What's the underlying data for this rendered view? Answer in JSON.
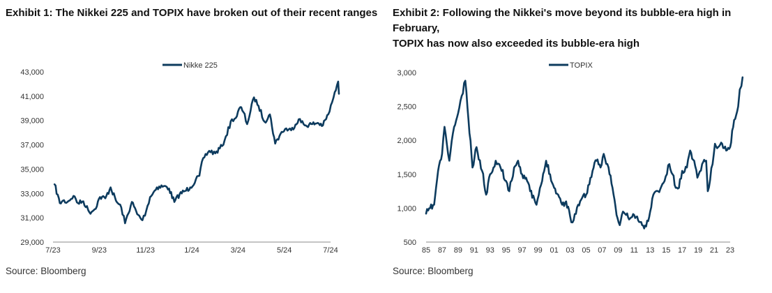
{
  "exhibit1": {
    "title": "Exhibit 1: The Nikkei 225 and TOPIX have broken out of their recent ranges",
    "source": "Source: Bloomberg"
  },
  "exhibit2": {
    "title_line1": "Exhibit 2: Following the Nikkei's move beyond its bubble-era high in February,",
    "title_line2": "TOPIX has now also exceeded its bubble-era high",
    "source": "Source: Bloomberg"
  },
  "chart_data": [
    {
      "type": "line",
      "title": "Exhibit 1: The Nikkei 225 and TOPIX have broken out of their recent ranges",
      "xlabel": "",
      "ylabel": "",
      "x_tick_labels": [
        "7/23",
        "9/23",
        "11/23",
        "1/24",
        "3/24",
        "5/24",
        "7/24"
      ],
      "y_tick_labels": [
        "29,000",
        "31,000",
        "33,000",
        "35,000",
        "37,000",
        "39,000",
        "41,000",
        "43,000"
      ],
      "ylim": [
        29000,
        43000
      ],
      "grid": false,
      "legend": "top-center",
      "color": "#0d3b5e",
      "series": [
        {
          "name": "Nikke 225",
          "points": [
            [
              "2023-07-03",
              33750
            ],
            [
              "2023-07-10",
              32200
            ],
            [
              "2023-07-14",
              32400
            ],
            [
              "2023-07-20",
              32300
            ],
            [
              "2023-07-28",
              32800
            ],
            [
              "2023-08-03",
              32200
            ],
            [
              "2023-08-10",
              32350
            ],
            [
              "2023-08-18",
              31450
            ],
            [
              "2023-08-25",
              31700
            ],
            [
              "2023-09-01",
              32700
            ],
            [
              "2023-09-08",
              32600
            ],
            [
              "2023-09-15",
              33500
            ],
            [
              "2023-09-22",
              32400
            ],
            [
              "2023-09-29",
              31850
            ],
            [
              "2023-10-04",
              30550
            ],
            [
              "2023-10-13",
              32300
            ],
            [
              "2023-10-20",
              31300
            ],
            [
              "2023-10-27",
              30800
            ],
            [
              "2023-11-01",
              31600
            ],
            [
              "2023-11-06",
              32700
            ],
            [
              "2023-11-15",
              33500
            ],
            [
              "2023-11-24",
              33600
            ],
            [
              "2023-12-01",
              33400
            ],
            [
              "2023-12-08",
              32300
            ],
            [
              "2023-12-15",
              32950
            ],
            [
              "2023-12-22",
              33200
            ],
            [
              "2023-12-29",
              33500
            ],
            [
              "2024-01-10",
              34450
            ],
            [
              "2024-01-15",
              35900
            ],
            [
              "2024-01-23",
              36500
            ],
            [
              "2024-01-31",
              36300
            ],
            [
              "2024-02-09",
              36900
            ],
            [
              "2024-02-14",
              37700
            ],
            [
              "2024-02-22",
              39100
            ],
            [
              "2024-02-27",
              39200
            ],
            [
              "2024-03-04",
              40100
            ],
            [
              "2024-03-08",
              39700
            ],
            [
              "2024-03-13",
              38700
            ],
            [
              "2024-03-22",
              40900
            ],
            [
              "2024-03-28",
              40200
            ],
            [
              "2024-04-05",
              38900
            ],
            [
              "2024-04-12",
              39500
            ],
            [
              "2024-04-19",
              37100
            ],
            [
              "2024-04-26",
              37900
            ],
            [
              "2024-05-02",
              38300
            ],
            [
              "2024-05-10",
              38200
            ],
            [
              "2024-05-20",
              39100
            ],
            [
              "2024-05-28",
              38600
            ],
            [
              "2024-06-07",
              38700
            ],
            [
              "2024-06-14",
              38800
            ],
            [
              "2024-06-21",
              38600
            ],
            [
              "2024-06-28",
              39500
            ],
            [
              "2024-07-03",
              40500
            ],
            [
              "2024-07-05",
              40900
            ],
            [
              "2024-07-11",
              42200
            ],
            [
              "2024-07-12",
              41200
            ]
          ]
        }
      ]
    },
    {
      "type": "line",
      "title": "Exhibit 2: Following the Nikkei's move beyond its bubble-era high in February, TOPIX has now also exceeded its bubble-era high",
      "xlabel": "",
      "ylabel": "",
      "x_tick_labels": [
        "85",
        "87",
        "89",
        "91",
        "93",
        "95",
        "97",
        "99",
        "01",
        "03",
        "05",
        "07",
        "09",
        "11",
        "13",
        "15",
        "17",
        "19",
        "21",
        "23"
      ],
      "y_tick_labels": [
        "500",
        "1,000",
        "1,500",
        "2,000",
        "2,500",
        "3,000"
      ],
      "ylim": [
        500,
        3000
      ],
      "grid": false,
      "legend": "top-center",
      "color": "#0d3b5e",
      "series": [
        {
          "name": "TOPIX",
          "points": [
            [
              1985.0,
              920
            ],
            [
              1985.5,
              1000
            ],
            [
              1986.0,
              1050
            ],
            [
              1986.5,
              1550
            ],
            [
              1987.0,
              1800
            ],
            [
              1987.3,
              2200
            ],
            [
              1987.9,
              1700
            ],
            [
              1988.5,
              2200
            ],
            [
              1989.0,
              2400
            ],
            [
              1989.9,
              2880
            ],
            [
              1990.3,
              2300
            ],
            [
              1990.8,
              1600
            ],
            [
              1991.3,
              1900
            ],
            [
              1992.0,
              1550
            ],
            [
              1992.5,
              1200
            ],
            [
              1993.0,
              1500
            ],
            [
              1993.7,
              1700
            ],
            [
              1994.3,
              1600
            ],
            [
              1995.0,
              1400
            ],
            [
              1995.4,
              1250
            ],
            [
              1996.0,
              1600
            ],
            [
              1996.5,
              1700
            ],
            [
              1997.0,
              1500
            ],
            [
              1997.5,
              1450
            ],
            [
              1998.0,
              1250
            ],
            [
              1998.8,
              1050
            ],
            [
              1999.5,
              1400
            ],
            [
              2000.0,
              1700
            ],
            [
              2000.5,
              1500
            ],
            [
              2001.0,
              1300
            ],
            [
              2001.5,
              1200
            ],
            [
              2002.0,
              1050
            ],
            [
              2002.5,
              1100
            ],
            [
              2003.0,
              880
            ],
            [
              2003.3,
              790
            ],
            [
              2004.0,
              1050
            ],
            [
              2004.5,
              1150
            ],
            [
              2005.0,
              1200
            ],
            [
              2005.8,
              1550
            ],
            [
              2006.3,
              1700
            ],
            [
              2006.8,
              1600
            ],
            [
              2007.2,
              1800
            ],
            [
              2007.8,
              1600
            ],
            [
              2008.3,
              1300
            ],
            [
              2008.8,
              900
            ],
            [
              2009.2,
              750
            ],
            [
              2009.6,
              950
            ],
            [
              2010.0,
              900
            ],
            [
              2010.5,
              850
            ],
            [
              2011.0,
              900
            ],
            [
              2011.5,
              820
            ],
            [
              2012.0,
              750
            ],
            [
              2012.5,
              730
            ],
            [
              2013.0,
              950
            ],
            [
              2013.4,
              1200
            ],
            [
              2014.0,
              1250
            ],
            [
              2014.8,
              1400
            ],
            [
              2015.4,
              1650
            ],
            [
              2015.8,
              1500
            ],
            [
              2016.2,
              1300
            ],
            [
              2016.6,
              1300
            ],
            [
              2017.0,
              1550
            ],
            [
              2017.6,
              1600
            ],
            [
              2018.0,
              1850
            ],
            [
              2018.5,
              1700
            ],
            [
              2018.9,
              1450
            ],
            [
              2019.5,
              1650
            ],
            [
              2020.0,
              1700
            ],
            [
              2020.2,
              1250
            ],
            [
              2020.8,
              1650
            ],
            [
              2021.1,
              1950
            ],
            [
              2021.5,
              1900
            ],
            [
              2022.0,
              1950
            ],
            [
              2022.5,
              1850
            ],
            [
              2023.0,
              1900
            ],
            [
              2023.5,
              2300
            ],
            [
              2024.0,
              2500
            ],
            [
              2024.2,
              2750
            ],
            [
              2024.4,
              2800
            ],
            [
              2024.55,
              2930
            ]
          ]
        }
      ]
    }
  ]
}
